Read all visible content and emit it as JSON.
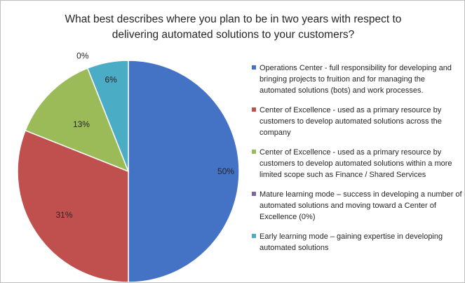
{
  "chart_data": {
    "type": "pie",
    "title_lines": [
      "What best describes where you plan to be in two years with respect to",
      "delivering automated solutions to your customers?"
    ],
    "slices": [
      {
        "label": "Operations Center - full responsibility for developing and bringing projects to fruition and for managing the automated solutions (bots) and work processes.",
        "value": 50,
        "value_label": "50%",
        "color": "#4472c4"
      },
      {
        "label": "Center of Excellence - used as a primary resource by customers to develop automated solutions across the company",
        "value": 31,
        "value_label": "31%",
        "color": "#c0504d"
      },
      {
        "label": "Center of Excellence - used as a primary resource by customers to develop automated solutions within a more limited scope such as Finance / Shared Services",
        "value": 13,
        "value_label": "13%",
        "color": "#9bbb59"
      },
      {
        "label": "Mature learning mode – success in developing a number of automated solutions and moving toward a Center  of Excellence (0%)",
        "value": 0,
        "value_label": "0%",
        "color": "#8064a2"
      },
      {
        "label": "Early learning mode – gaining expertise in developing automated solutions",
        "value": 6,
        "value_label": "6%",
        "color": "#4bacc6"
      }
    ],
    "legend_position": "right"
  }
}
